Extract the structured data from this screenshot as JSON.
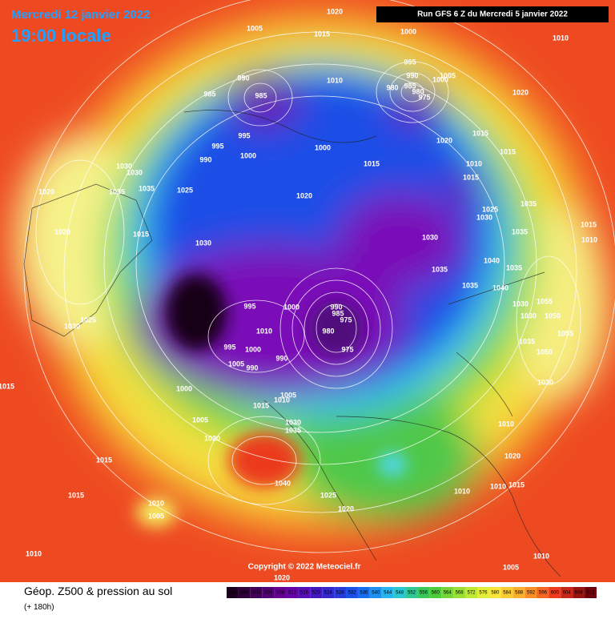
{
  "header": {
    "title": "Mercredi 12 janvier 2022",
    "time": "19:00 locale",
    "run": "Run GFS 6 Z du Mercredi 5 janvier 2022"
  },
  "copyright": "Copyright © 2022 Meteociel.fr",
  "footer": {
    "product": "Géop. Z500 & pression au sol",
    "lead": "(+ 180h)"
  },
  "colorbar": {
    "ticks": [
      492,
      496,
      500,
      504,
      508,
      512,
      516,
      520,
      524,
      528,
      532,
      536,
      540,
      544,
      548,
      552,
      556,
      560,
      564,
      568,
      572,
      576,
      580,
      584,
      588,
      592,
      596,
      600,
      604,
      608,
      612
    ]
  },
  "isobar_labels": [
    "1020",
    "1005",
    "1015",
    "1000",
    "1010",
    "995",
    "990",
    "1005",
    "1000",
    "980",
    "985",
    "980",
    "975",
    "1010",
    "990",
    "985",
    "985",
    "1020",
    "995",
    "995",
    "990",
    "1000",
    "1000",
    "1020",
    "1015",
    "1015",
    "1015",
    "1010",
    "1015",
    "1030",
    "1030",
    "1020",
    "1035",
    "1035",
    "1025",
    "1020",
    "1025",
    "1030",
    "1035",
    "1015",
    "1020",
    "1015",
    "1010",
    "1030",
    "1030",
    "1035",
    "1040",
    "1035",
    "1035",
    "1035",
    "1040",
    "1055",
    "1030",
    "995",
    "1000",
    "990",
    "985",
    "975",
    "1030",
    "1025",
    "1030",
    "1050",
    "1010",
    "980",
    "1055",
    "1035",
    "995",
    "1000",
    "975",
    "1050",
    "990",
    "1005",
    "990",
    "1015",
    "1000",
    "1030",
    "1005",
    "1010",
    "1015",
    "1005",
    "1030",
    "1035",
    "1010",
    "1020",
    "1015",
    "1020",
    "1040",
    "1010",
    "1010",
    "1015",
    "1015",
    "1025",
    "1010",
    "1005",
    "1020",
    "1010",
    "1010",
    "1005",
    "1020"
  ]
}
